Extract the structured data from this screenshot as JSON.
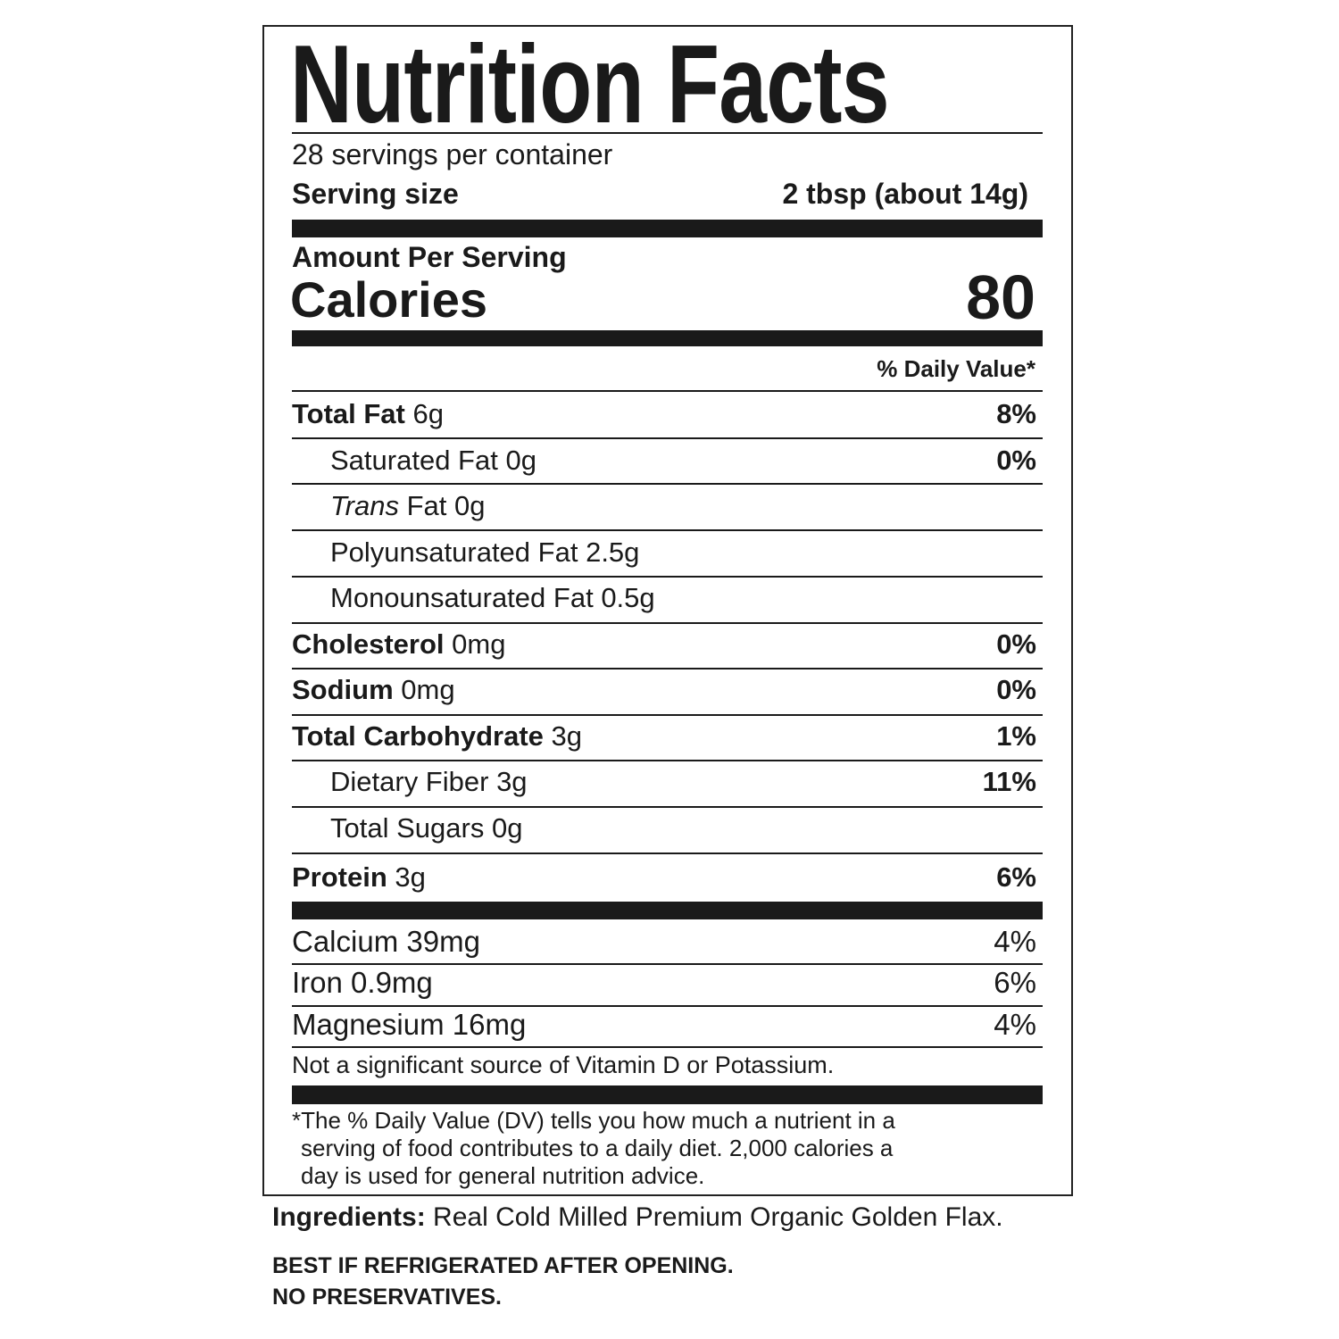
{
  "title": "Nutrition Facts",
  "servings_per_container": "28 servings per container",
  "serving_size": {
    "label": "Serving size",
    "value": "2 tbsp (about 14g)"
  },
  "amount_per_serving": "Amount Per Serving",
  "calories": {
    "label": "Calories",
    "value": "80"
  },
  "daily_value_header": "% Daily Value*",
  "nutrients": [
    {
      "name": "Total Fat",
      "amount": "6g",
      "dv": "8%"
    },
    {
      "name": "Saturated Fat",
      "amount": "0g",
      "dv": "0%"
    },
    {
      "name_italic": "Trans",
      "name": "Fat",
      "amount": "0g",
      "dv": ""
    },
    {
      "name": "Polyunsaturated Fat",
      "amount": "2.5g",
      "dv": ""
    },
    {
      "name": "Monounsaturated Fat",
      "amount": "0.5g",
      "dv": ""
    },
    {
      "name": "Cholesterol",
      "amount": "0mg",
      "dv": "0%"
    },
    {
      "name": "Sodium",
      "amount": "0mg",
      "dv": "0%"
    },
    {
      "name": "Total Carbohydrate",
      "amount": "3g",
      "dv": "1%"
    },
    {
      "name": "Dietary Fiber",
      "amount": "3g",
      "dv": "11%"
    },
    {
      "name": "Total Sugars",
      "amount": "0g",
      "dv": ""
    },
    {
      "name": "Protein",
      "amount": "3g",
      "dv": "6%"
    }
  ],
  "minerals": [
    {
      "name": "Calcium",
      "amount": "39mg",
      "dv": "4%"
    },
    {
      "name": "Iron",
      "amount": "0.9mg",
      "dv": "6%"
    },
    {
      "name": "Magnesium",
      "amount": "16mg",
      "dv": "4%"
    }
  ],
  "not_significant": "Not a significant source of Vitamin D or Potassium.",
  "footnote": [
    "*The % Daily Value (DV) tells you how much a nutrient in a",
    "serving of food contributes to a daily diet. 2,000 calories a",
    "day is used for general nutrition advice."
  ],
  "ingredients": {
    "label": "Ingredients:",
    "value": "Real Cold Milled Premium Organic Golden Flax."
  },
  "notices": [
    "BEST IF REFRIGERATED AFTER OPENING.",
    "NO PRESERVATIVES."
  ]
}
